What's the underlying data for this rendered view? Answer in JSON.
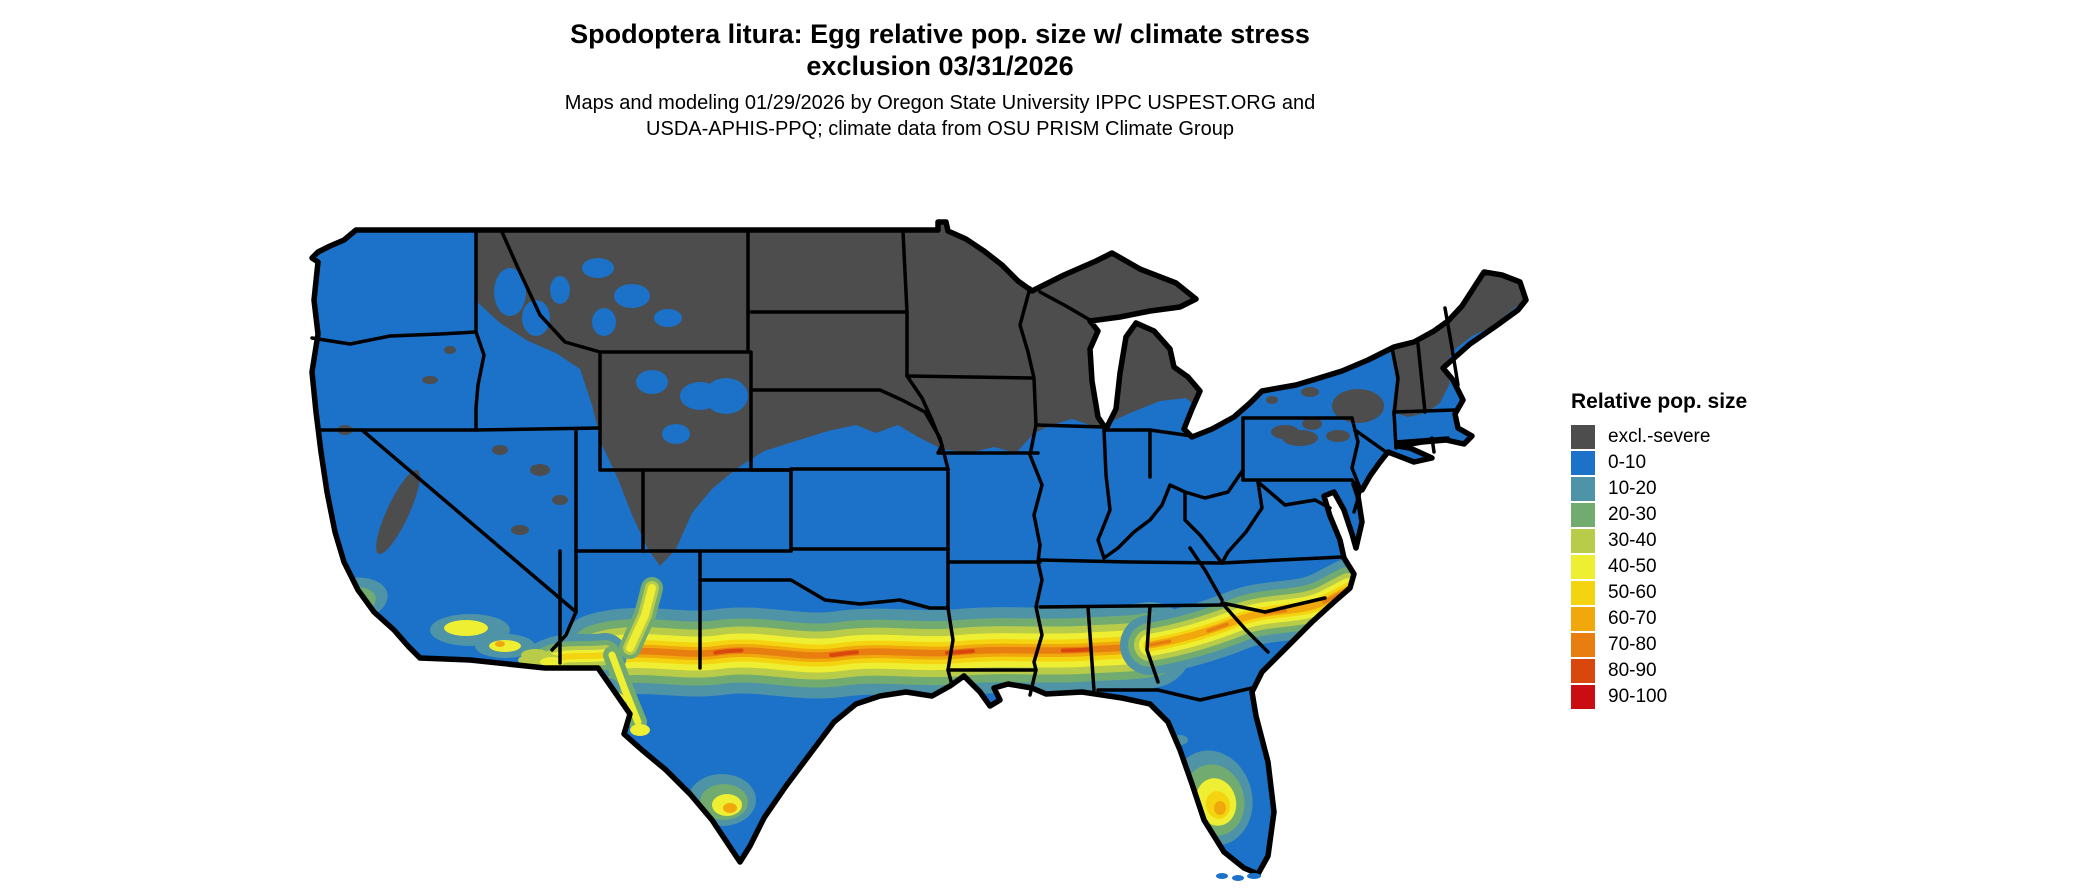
{
  "header": {
    "title_line1": "Spodoptera litura: Egg relative pop. size w/ climate stress",
    "title_line2": "exclusion 03/31/2026",
    "subtitle_line1": "Maps and modeling 01/29/2026 by Oregon State University IPPC USPEST.ORG and",
    "subtitle_line2": "USDA-APHIS-PPQ; climate data from OSU PRISM Climate Group"
  },
  "legend": {
    "title": "Relative pop. size",
    "items": [
      {
        "label": "excl.-severe",
        "color": "#4d4d4d"
      },
      {
        "label": "0-10",
        "color": "#1b72c8"
      },
      {
        "label": "10-20",
        "color": "#4e93a6"
      },
      {
        "label": "20-30",
        "color": "#72ab70"
      },
      {
        "label": "30-40",
        "color": "#b8cc49"
      },
      {
        "label": "40-50",
        "color": "#eeee32"
      },
      {
        "label": "50-60",
        "color": "#f4d410"
      },
      {
        "label": "60-70",
        "color": "#f0a80d"
      },
      {
        "label": "70-80",
        "color": "#e87d10"
      },
      {
        "label": "80-90",
        "color": "#d9470c"
      },
      {
        "label": "90-100",
        "color": "#c90d12"
      }
    ]
  },
  "map": {
    "region": "Continental United States",
    "palette": {
      "excluded": "#4d4d4d",
      "b0": "#1b72c8",
      "b10": "#4e93a6",
      "b20": "#72ab70",
      "b30": "#b8cc49",
      "b40": "#eeee32",
      "b50": "#f4d410",
      "b60": "#f0a80d",
      "b70": "#e87d10",
      "b80": "#d9470c",
      "b90": "#c90d12",
      "outline": "#000000",
      "background": "#ffffff"
    },
    "pattern_summary": "Northern tier (MT, WY, ND, SD, MN, WI, upper MI, CO mountains, N. New England) excluded-severe gray; most of CONUS 0-10 blue; high 40-80 yellow-orange band across central Texas, the Gulf states and the Carolinas; warm patches in S. California, S. Arizona, Rio Grande, south Texas and central Florida."
  }
}
